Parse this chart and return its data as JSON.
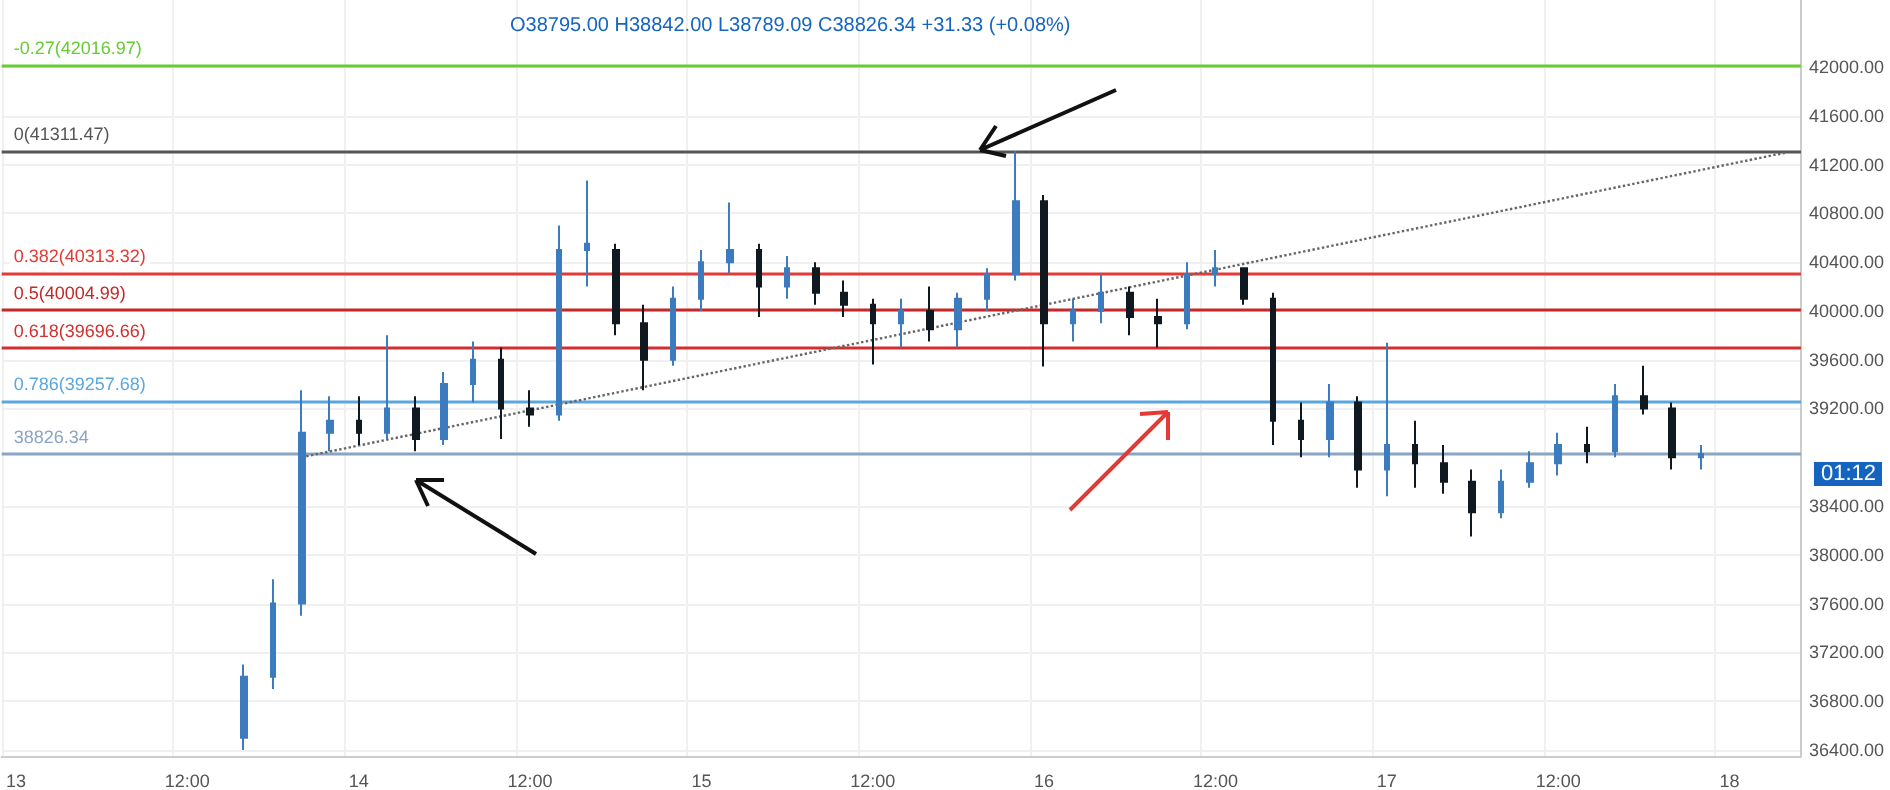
{
  "chart_data": {
    "type": "candlestick",
    "subtitle": "O38795.00 H38842.00 L38789.09 C38826.34 +31.33 (+0.08%)",
    "annotations": [
      "01:12"
    ],
    "categories": [
      "13",
      null,
      null,
      null,
      null,
      null,
      "12:00",
      null,
      null,
      null,
      null,
      null,
      "14",
      null,
      null,
      null,
      null,
      null,
      "12:00",
      null,
      null,
      null,
      null,
      null,
      "15",
      null,
      null,
      null,
      null,
      null,
      "12:00",
      null,
      null,
      null,
      null,
      null,
      "16",
      null,
      null,
      null,
      null,
      null,
      "12:00",
      null,
      null,
      null,
      null,
      null,
      "17",
      null,
      null,
      null,
      null,
      null,
      "12:00",
      null,
      null,
      null,
      null,
      null,
      "18",
      null,
      null
    ],
    "ohlc": [
      null,
      null,
      null,
      null,
      null,
      null,
      null,
      null,
      [
        36500,
        37100,
        36400,
        37000
      ],
      [
        37000,
        37800,
        36900,
        37600
      ],
      [
        37600,
        39350,
        37500,
        39000
      ],
      [
        39000,
        39300,
        38850,
        39100
      ],
      [
        39100,
        39300,
        38900,
        39000
      ],
      [
        39000,
        39800,
        38950,
        39200
      ],
      [
        39200,
        39300,
        38850,
        38950
      ],
      [
        38950,
        39500,
        38900,
        39400
      ],
      [
        39400,
        39750,
        39250,
        39600
      ],
      [
        39600,
        39700,
        38950,
        39200
      ],
      [
        39200,
        39350,
        39050,
        39150
      ],
      [
        39150,
        40700,
        39100,
        40500
      ],
      [
        40500,
        41070,
        40200,
        40550
      ],
      [
        40500,
        40550,
        39800,
        39900
      ],
      [
        39900,
        40050,
        39350,
        39600
      ],
      [
        39600,
        40200,
        39550,
        40100
      ],
      [
        40100,
        40500,
        40000,
        40400
      ],
      [
        40400,
        40890,
        40300,
        40500
      ],
      [
        40500,
        40550,
        39950,
        40200
      ],
      [
        40200,
        40450,
        40100,
        40350
      ],
      [
        40350,
        40400,
        40050,
        40150
      ],
      [
        40150,
        40250,
        39950,
        40050
      ],
      [
        40050,
        40100,
        39560,
        39900
      ],
      [
        39900,
        40100,
        39700,
        40000
      ],
      [
        40000,
        40200,
        39750,
        39850
      ],
      [
        39850,
        40150,
        39700,
        40100
      ],
      [
        40100,
        40350,
        40000,
        40300
      ],
      [
        40300,
        41311,
        40250,
        40900
      ],
      [
        40900,
        40950,
        39545,
        39900
      ],
      [
        39900,
        40100,
        39750,
        40000
      ],
      [
        40000,
        40300,
        39900,
        40150
      ],
      [
        40150,
        40200,
        39800,
        39950
      ],
      [
        39950,
        40100,
        39700,
        39900
      ],
      [
        39900,
        40400,
        39850,
        40300
      ],
      [
        40300,
        40500,
        40200,
        40350
      ],
      [
        40350,
        40350,
        40050,
        40100
      ],
      [
        40100,
        40150,
        38900,
        39100
      ],
      [
        39100,
        39250,
        38800,
        38950
      ],
      [
        38950,
        39400,
        38800,
        39250
      ],
      [
        39250,
        39300,
        38550,
        38700
      ],
      [
        38700,
        39740,
        38480,
        38900
      ],
      [
        38900,
        39100,
        38550,
        38750
      ],
      [
        38750,
        38900,
        38500,
        38600
      ],
      [
        38600,
        38700,
        38150,
        38350
      ],
      [
        38350,
        38700,
        38300,
        38600
      ],
      [
        38600,
        38850,
        38550,
        38750
      ],
      [
        38750,
        39000,
        38650,
        38900
      ],
      [
        38900,
        39050,
        38750,
        38850
      ],
      [
        38850,
        39400,
        38800,
        39300
      ],
      [
        39300,
        39550,
        39150,
        39200
      ],
      [
        39200,
        39250,
        38700,
        38800
      ],
      [
        38800,
        38900,
        38700,
        38826.34
      ],
      null,
      null,
      null
    ],
    "colors": [
      null,
      null,
      null,
      null,
      null,
      null,
      null,
      null,
      "#3d7bbf",
      "#3d7bbf",
      "#3d7bbf",
      "#3d7bbf",
      "#101820",
      "#3d7bbf",
      "#101820",
      "#3d7bbf",
      "#3d7bbf",
      "#101820",
      "#101820",
      "#3d7bbf",
      "#3d7bbf",
      "#101820",
      "#101820",
      "#3d7bbf",
      "#3d7bbf",
      "#3d7bbf",
      "#101820",
      "#3d7bbf",
      "#101820",
      "#101820",
      "#101820",
      "#3d7bbf",
      "#101820",
      "#3d7bbf",
      "#3d7bbf",
      "#3d7bbf",
      "#101820",
      "#3d7bbf",
      "#3d7bbf",
      "#101820",
      "#101820",
      "#3d7bbf",
      "#3d7bbf",
      "#101820",
      "#101820",
      "#101820",
      "#3d7bbf",
      "#101820",
      "#3d7bbf",
      "#101820",
      "#101820",
      "#101820",
      "#3d7bbf",
      "#3d7bbf",
      "#3d7bbf",
      "#101820",
      "#3d7bbf",
      "#101820",
      "#101820",
      "#3d7bbf",
      null,
      null,
      null
    ],
    "series": [
      {
        "type": "line",
        "values": [
          null,
          null,
          null,
          null,
          null,
          null,
          null,
          null,
          null,
          null,
          38800,
          null,
          null,
          null,
          null,
          null,
          null,
          null,
          null,
          null,
          null,
          null,
          null,
          null,
          null,
          null,
          null,
          null,
          null,
          null,
          null,
          null,
          null,
          null,
          null,
          null,
          null,
          null,
          null,
          null,
          null,
          null,
          null,
          null,
          null,
          null,
          null,
          null,
          null,
          null,
          null,
          null,
          null,
          null,
          null,
          null,
          null,
          null,
          null,
          null,
          null,
          null,
          41300
        ],
        "color": "#666666",
        "line_style": "dotted"
      }
    ],
    "ylim": [
      36350,
      42550
    ],
    "yticks": [
      {
        "value": 36400,
        "label": "36400.00"
      },
      {
        "value": 36800,
        "label": "36800.00"
      },
      {
        "value": 37200,
        "label": "37200.00"
      },
      {
        "value": 37600,
        "label": "37600.00"
      },
      {
        "value": 38000,
        "label": "38000.00"
      },
      {
        "value": 38400,
        "label": "38400.00"
      },
      {
        "value": 39200,
        "label": "39200.00"
      },
      {
        "value": 39600,
        "label": "39600.00"
      },
      {
        "value": 40000,
        "label": "40000.00"
      },
      {
        "value": 40400,
        "label": "40400.00"
      },
      {
        "value": 40800,
        "label": "40800.00"
      },
      {
        "value": 41200,
        "label": "41200.00"
      },
      {
        "value": 41600,
        "label": "41600.00"
      },
      {
        "value": 42000,
        "label": "42000.00"
      }
    ],
    "ref_lines": [
      {
        "axis": "y",
        "value": 42016.97,
        "label": "-0.27(42016.97)",
        "color": "#66cc33"
      },
      {
        "axis": "y",
        "value": 41311.47,
        "label": "0(41311.47)",
        "color": "#555555"
      },
      {
        "axis": "y",
        "value": 40313.32,
        "label": "0.382(40313.32)",
        "color": "#e53935"
      },
      {
        "axis": "y",
        "value": 40004.99,
        "label": "0.5(40004.99)",
        "color": "#c62828"
      },
      {
        "axis": "y",
        "value": 39696.66,
        "label": "0.618(39696.66)",
        "color": "#d32f2f"
      },
      {
        "axis": "y",
        "value": 39257.68,
        "label": "0.786(39257.68)",
        "color": "#5aa7e0"
      },
      {
        "axis": "y",
        "value": 38826.34,
        "label": "38826.34",
        "color": "#8aa4c4"
      }
    ],
    "grid": true
  }
}
